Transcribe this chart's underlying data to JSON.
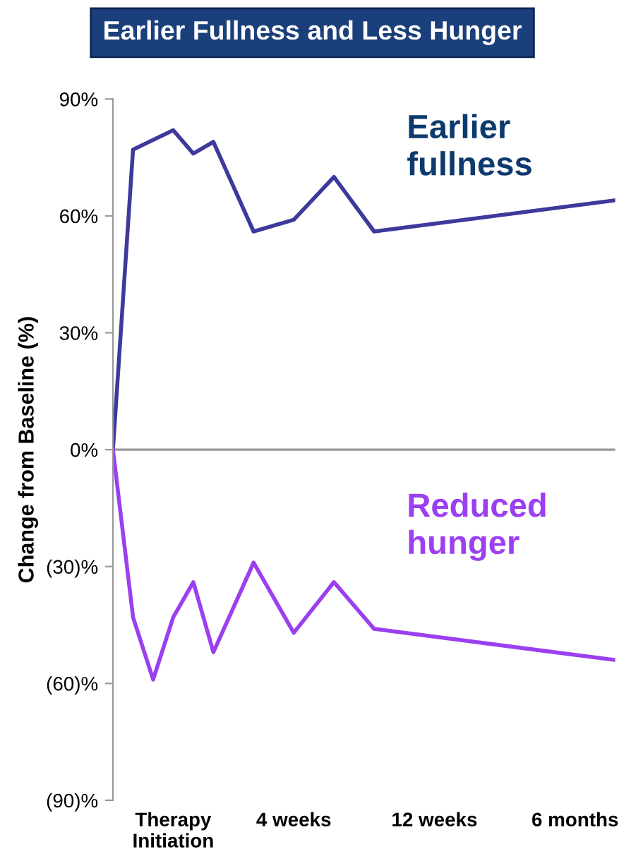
{
  "chart_data": {
    "type": "line",
    "title": "Earlier Fullness and Less Hunger",
    "ylabel": "Change from Baseline (%)",
    "categories": [
      null,
      null,
      null,
      "Therapy\nInitiation",
      null,
      null,
      null,
      null,
      null,
      "4 weeks",
      null,
      null,
      null,
      null,
      null,
      null,
      "12 weeks",
      null,
      null,
      null,
      null,
      null,
      null,
      "6 months",
      null,
      null
    ],
    "series": [
      {
        "name": "Earlier fullness",
        "color": "#3d3a9c",
        "values": [
          0,
          77,
          null,
          82,
          76,
          79,
          null,
          56,
          null,
          59,
          null,
          70,
          null,
          56,
          null,
          null,
          null,
          null,
          null,
          null,
          null,
          null,
          null,
          null,
          null,
          64
        ]
      },
      {
        "name": "Reduced hunger",
        "color": "#9b3ff0",
        "values": [
          0,
          -43,
          -59,
          -43,
          -34,
          -52,
          null,
          -29,
          null,
          -47,
          null,
          -34,
          null,
          -46,
          null,
          null,
          null,
          null,
          null,
          null,
          null,
          null,
          null,
          null,
          null,
          -54
        ]
      }
    ],
    "ylim": [
      -90,
      90
    ],
    "yticks": [
      {
        "value": 90,
        "label": "90%"
      },
      {
        "value": 60,
        "label": "60%"
      },
      {
        "value": 30,
        "label": "30%"
      },
      {
        "value": 0,
        "label": "0%"
      },
      {
        "value": -30,
        "label": "(30)%"
      },
      {
        "value": -60,
        "label": "(60)%"
      },
      {
        "value": -90,
        "label": "(90)%"
      }
    ],
    "ref_lines": [
      {
        "axis": "y",
        "value": 0,
        "color": "#999999"
      }
    ],
    "grid": false,
    "legend": false,
    "marker": "none",
    "line_style": "solid"
  }
}
